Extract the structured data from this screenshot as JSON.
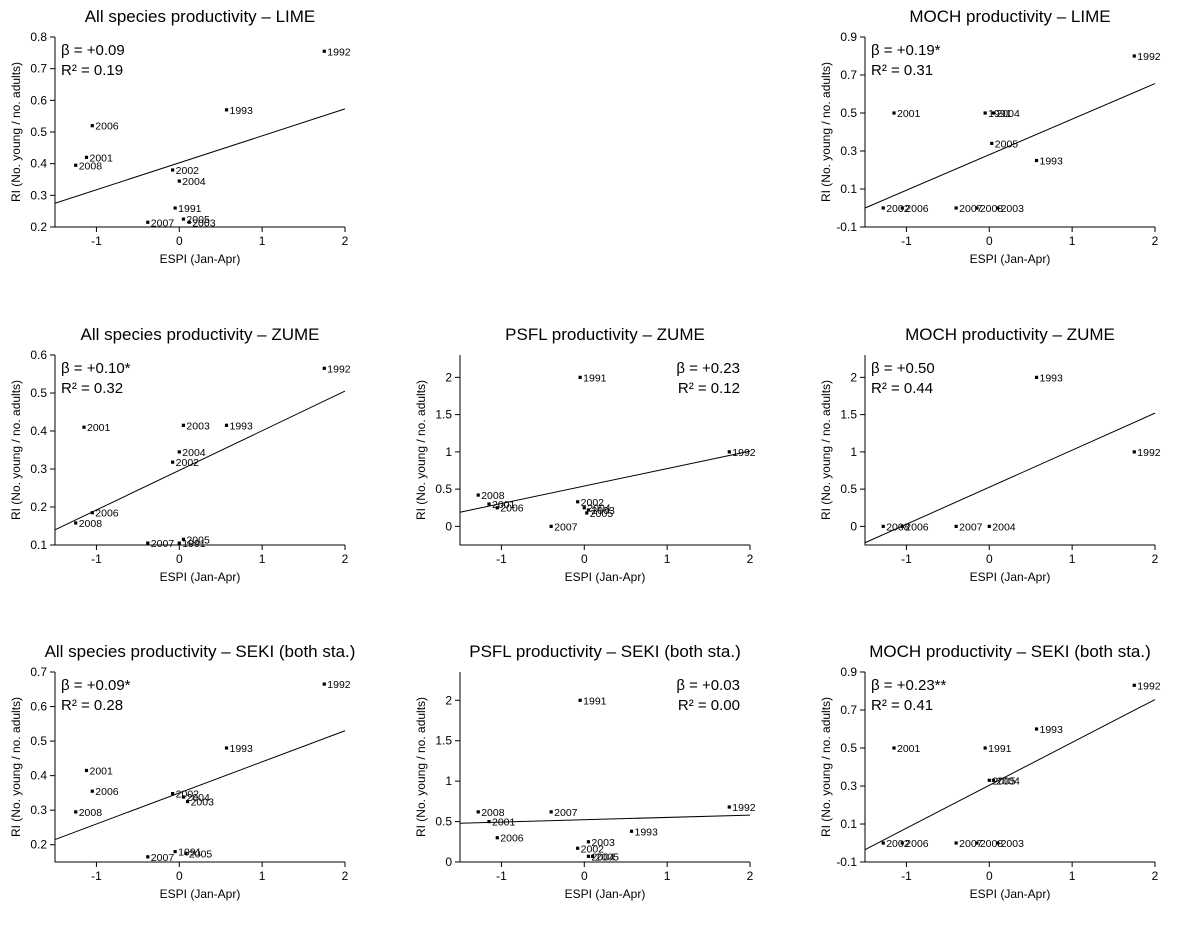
{
  "chart_data": [
    {
      "type": "scatter",
      "title": "All species productivity – LIME",
      "xlabel": "ESPI (Jan-Apr)",
      "ylabel": "RI (No. young / no. adults)",
      "xlim": [
        -1.5,
        2
      ],
      "ylim": [
        0.2,
        0.8
      ],
      "xticks": [
        "-1",
        "0",
        "1",
        "2"
      ],
      "yticks": [
        "0.2",
        "0.3",
        "0.4",
        "0.5",
        "0.6",
        "0.7",
        "0.8"
      ],
      "beta": "β = +0.09",
      "r2": "R² = 0.19",
      "stats_position": "top-left",
      "regression": {
        "x": [
          -1.5,
          2
        ],
        "y": [
          0.275,
          0.573
        ]
      },
      "points": [
        {
          "label": "1992",
          "x": 1.75,
          "y": 0.755
        },
        {
          "label": "1993",
          "x": 0.57,
          "y": 0.57
        },
        {
          "label": "2006",
          "x": -1.05,
          "y": 0.52
        },
        {
          "label": "2001",
          "x": -1.12,
          "y": 0.42
        },
        {
          "label": "2008",
          "x": -1.25,
          "y": 0.395
        },
        {
          "label": "2002",
          "x": -0.08,
          "y": 0.38
        },
        {
          "label": "2004",
          "x": 0.0,
          "y": 0.345
        },
        {
          "label": "1991",
          "x": -0.05,
          "y": 0.26
        },
        {
          "label": "2005",
          "x": 0.05,
          "y": 0.225
        },
        {
          "label": "2003",
          "x": 0.12,
          "y": 0.215
        },
        {
          "label": "2007",
          "x": -0.38,
          "y": 0.215
        }
      ]
    },
    {
      "type": "scatter",
      "title": "MOCH productivity – LIME",
      "xlabel": "ESPI (Jan-Apr)",
      "ylabel": "RI (No. young / no. adults)",
      "xlim": [
        -1.5,
        2
      ],
      "ylim": [
        -0.1,
        0.9
      ],
      "xticks": [
        "-1",
        "0",
        "1",
        "2"
      ],
      "yticks": [
        "-0.1",
        "0.1",
        "0.3",
        "0.5",
        "0.7",
        "0.9"
      ],
      "beta": "β = +0.19*",
      "r2": "R² = 0.31",
      "stats_position": "top-left",
      "regression": {
        "x": [
          -1.5,
          2
        ],
        "y": [
          0.0,
          0.655
        ]
      },
      "points": [
        {
          "label": "1992",
          "x": 1.75,
          "y": 0.8
        },
        {
          "label": "2001",
          "x": -1.15,
          "y": 0.5
        },
        {
          "label": "1991",
          "x": -0.05,
          "y": 0.5
        },
        {
          "label": "2004",
          "x": 0.05,
          "y": 0.5
        },
        {
          "label": "2005",
          "x": 0.03,
          "y": 0.34
        },
        {
          "label": "1993",
          "x": 0.57,
          "y": 0.25
        },
        {
          "label": "2002",
          "x": -1.28,
          "y": 0.0
        },
        {
          "label": "2006",
          "x": -1.05,
          "y": 0.0
        },
        {
          "label": "2007",
          "x": -0.4,
          "y": 0.0
        },
        {
          "label": "2008",
          "x": -0.15,
          "y": 0.0
        },
        {
          "label": "2003",
          "x": 0.1,
          "y": 0.0
        }
      ]
    },
    {
      "type": "scatter",
      "title": "All species productivity – ZUME",
      "xlabel": "ESPI (Jan-Apr)",
      "ylabel": "RI (No. young / no. adults)",
      "xlim": [
        -1.5,
        2
      ],
      "ylim": [
        0.1,
        0.6
      ],
      "xticks": [
        "-1",
        "0",
        "1",
        "2"
      ],
      "yticks": [
        "0.1",
        "0.2",
        "0.3",
        "0.4",
        "0.5",
        "0.6"
      ],
      "beta": "β = +0.10*",
      "r2": "R² = 0.32",
      "stats_position": "top-left",
      "regression": {
        "x": [
          -1.5,
          2
        ],
        "y": [
          0.14,
          0.505
        ]
      },
      "points": [
        {
          "label": "1992",
          "x": 1.75,
          "y": 0.565
        },
        {
          "label": "2001",
          "x": -1.15,
          "y": 0.41
        },
        {
          "label": "2003",
          "x": 0.05,
          "y": 0.415
        },
        {
          "label": "1993",
          "x": 0.57,
          "y": 0.415
        },
        {
          "label": "2004",
          "x": 0.0,
          "y": 0.345
        },
        {
          "label": "2002",
          "x": -0.08,
          "y": 0.318
        },
        {
          "label": "2006",
          "x": -1.05,
          "y": 0.185
        },
        {
          "label": "2008",
          "x": -1.25,
          "y": 0.158
        },
        {
          "label": "2005",
          "x": 0.05,
          "y": 0.115
        },
        {
          "label": "1991",
          "x": 0.0,
          "y": 0.105
        },
        {
          "label": "2007",
          "x": -0.38,
          "y": 0.105
        }
      ]
    },
    {
      "type": "scatter",
      "title": "PSFL productivity – ZUME",
      "xlabel": "ESPI (Jan-Apr)",
      "ylabel": "RI (No. young / no. adults)",
      "xlim": [
        -1.5,
        2
      ],
      "ylim": [
        -0.25,
        2.3
      ],
      "xticks": [
        "-1",
        "0",
        "1",
        "2"
      ],
      "yticks": [
        "0",
        "0.5",
        "1",
        "1.5",
        "2"
      ],
      "beta": "β = +0.23",
      "r2": "R² = 0.12",
      "stats_position": "top-right",
      "regression": {
        "x": [
          -1.5,
          2
        ],
        "y": [
          0.19,
          1.01
        ]
      },
      "points": [
        {
          "label": "1991",
          "x": -0.05,
          "y": 2.0
        },
        {
          "label": "1992",
          "x": 1.75,
          "y": 1.0
        },
        {
          "label": "2008",
          "x": -1.28,
          "y": 0.42
        },
        {
          "label": "2001",
          "x": -1.15,
          "y": 0.3
        },
        {
          "label": "2006",
          "x": -1.05,
          "y": 0.25
        },
        {
          "label": "2002",
          "x": -0.08,
          "y": 0.33
        },
        {
          "label": "2004",
          "x": 0.0,
          "y": 0.25
        },
        {
          "label": "2003",
          "x": 0.05,
          "y": 0.22
        },
        {
          "label": "2005",
          "x": 0.03,
          "y": 0.18
        },
        {
          "label": "2007",
          "x": -0.4,
          "y": 0.0
        }
      ]
    },
    {
      "type": "scatter",
      "title": "MOCH productivity – ZUME",
      "xlabel": "ESPI (Jan-Apr)",
      "ylabel": "RI (No. young / no. adults)",
      "xlim": [
        -1.5,
        2
      ],
      "ylim": [
        -0.25,
        2.3
      ],
      "xticks": [
        "-1",
        "0",
        "1",
        "2"
      ],
      "yticks": [
        "0",
        "0.5",
        "1",
        "1.5",
        "2"
      ],
      "beta": "β = +0.50",
      "r2": "R² = 0.44",
      "stats_position": "top-left",
      "regression": {
        "x": [
          -1.5,
          2
        ],
        "y": [
          -0.22,
          1.52
        ]
      },
      "points": [
        {
          "label": "1993",
          "x": 0.57,
          "y": 2.0
        },
        {
          "label": "1992",
          "x": 1.75,
          "y": 1.0
        },
        {
          "label": "2008",
          "x": -1.28,
          "y": 0.0
        },
        {
          "label": "2006",
          "x": -1.05,
          "y": 0.0
        },
        {
          "label": "2007",
          "x": -0.4,
          "y": 0.0
        },
        {
          "label": "2004",
          "x": 0.0,
          "y": 0.0
        }
      ]
    },
    {
      "type": "scatter",
      "title": "All species productivity – SEKI (both sta.)",
      "xlabel": "ESPI (Jan-Apr)",
      "ylabel": "RI (No. young / no. adults)",
      "xlim": [
        -1.5,
        2
      ],
      "ylim": [
        0.15,
        0.7
      ],
      "xticks": [
        "-1",
        "0",
        "1",
        "2"
      ],
      "yticks": [
        "0.2",
        "0.3",
        "0.4",
        "0.5",
        "0.6",
        "0.7"
      ],
      "beta": "β = +0.09*",
      "r2": "R² = 0.28",
      "stats_position": "top-left",
      "regression": {
        "x": [
          -1.5,
          2
        ],
        "y": [
          0.215,
          0.53
        ]
      },
      "points": [
        {
          "label": "1992",
          "x": 1.75,
          "y": 0.665
        },
        {
          "label": "1993",
          "x": 0.57,
          "y": 0.48
        },
        {
          "label": "2001",
          "x": -1.12,
          "y": 0.415
        },
        {
          "label": "2006",
          "x": -1.05,
          "y": 0.355
        },
        {
          "label": "2002",
          "x": -0.08,
          "y": 0.348
        },
        {
          "label": "2004",
          "x": 0.05,
          "y": 0.338
        },
        {
          "label": "2003",
          "x": 0.1,
          "y": 0.325
        },
        {
          "label": "2008",
          "x": -1.25,
          "y": 0.295
        },
        {
          "label": "1991",
          "x": -0.05,
          "y": 0.18
        },
        {
          "label": "2005",
          "x": 0.08,
          "y": 0.175
        },
        {
          "label": "2007",
          "x": -0.38,
          "y": 0.165
        }
      ]
    },
    {
      "type": "scatter",
      "title": "PSFL productivity – SEKI (both sta.)",
      "xlabel": "ESPI (Jan-Apr)",
      "ylabel": "RI (No. young / no. adults)",
      "xlim": [
        -1.5,
        2
      ],
      "ylim": [
        0.0,
        2.35
      ],
      "xticks": [
        "-1",
        "0",
        "1",
        "2"
      ],
      "yticks": [
        "0",
        "0.5",
        "1",
        "1.5",
        "2"
      ],
      "beta": "β = +0.03",
      "r2": "R² = 0.00",
      "stats_position": "top-right",
      "regression": {
        "x": [
          -1.5,
          2
        ],
        "y": [
          0.48,
          0.58
        ]
      },
      "points": [
        {
          "label": "1991",
          "x": -0.05,
          "y": 2.0
        },
        {
          "label": "1992",
          "x": 1.75,
          "y": 0.68
        },
        {
          "label": "2008",
          "x": -1.28,
          "y": 0.62
        },
        {
          "label": "2007",
          "x": -0.4,
          "y": 0.62
        },
        {
          "label": "2001",
          "x": -1.15,
          "y": 0.5
        },
        {
          "label": "1993",
          "x": 0.57,
          "y": 0.38
        },
        {
          "label": "2006",
          "x": -1.05,
          "y": 0.3
        },
        {
          "label": "2003",
          "x": 0.05,
          "y": 0.25
        },
        {
          "label": "2002",
          "x": -0.08,
          "y": 0.17
        },
        {
          "label": "2004",
          "x": 0.05,
          "y": 0.07
        },
        {
          "label": "2005",
          "x": 0.1,
          "y": 0.07
        }
      ]
    },
    {
      "type": "scatter",
      "title": "MOCH productivity – SEKI (both sta.)",
      "xlabel": "ESPI (Jan-Apr)",
      "ylabel": "RI (No. young / no. adults)",
      "xlim": [
        -1.5,
        2
      ],
      "ylim": [
        -0.1,
        0.9
      ],
      "xticks": [
        "-1",
        "0",
        "1",
        "2"
      ],
      "yticks": [
        "-0.1",
        "0.1",
        "0.3",
        "0.5",
        "0.7",
        "0.9"
      ],
      "beta": "β = +0.23**",
      "r2": "R² = 0.41",
      "stats_position": "top-left",
      "regression": {
        "x": [
          -1.5,
          2
        ],
        "y": [
          -0.035,
          0.755
        ]
      },
      "points": [
        {
          "label": "1992",
          "x": 1.75,
          "y": 0.83
        },
        {
          "label": "1993",
          "x": 0.57,
          "y": 0.6
        },
        {
          "label": "2001",
          "x": -1.15,
          "y": 0.5
        },
        {
          "label": "1991",
          "x": -0.05,
          "y": 0.5
        },
        {
          "label": "2005",
          "x": 0.0,
          "y": 0.33
        },
        {
          "label": "2004",
          "x": 0.05,
          "y": 0.33
        },
        {
          "label": "2002",
          "x": -1.28,
          "y": 0.0
        },
        {
          "label": "2006",
          "x": -1.05,
          "y": 0.0
        },
        {
          "label": "2007",
          "x": -0.4,
          "y": 0.0
        },
        {
          "label": "2008",
          "x": -0.15,
          "y": 0.0
        },
        {
          "label": "2003",
          "x": 0.1,
          "y": 0.0
        }
      ]
    }
  ]
}
